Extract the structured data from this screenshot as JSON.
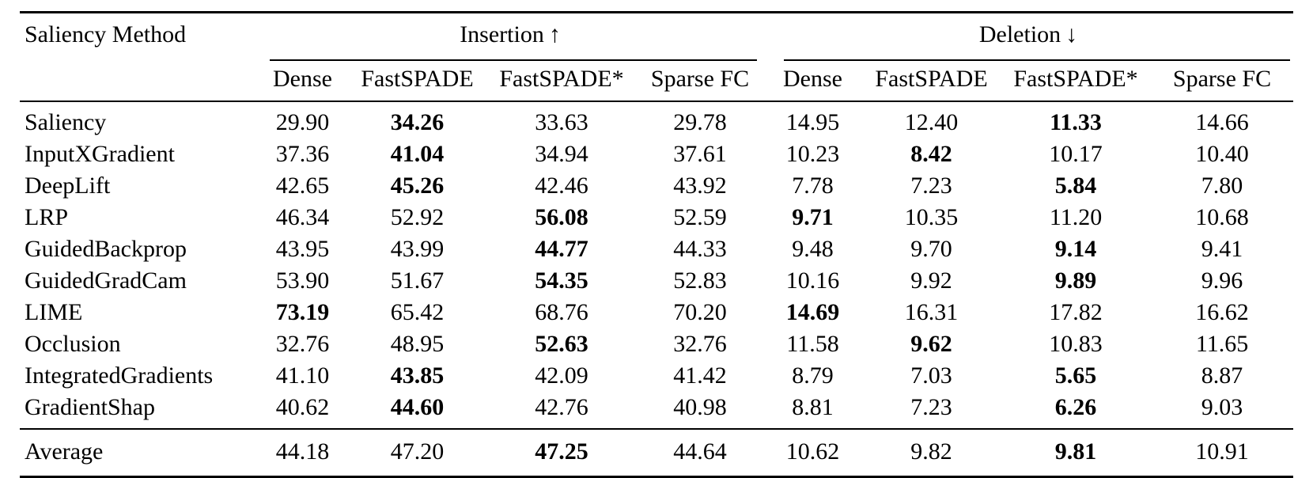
{
  "table": {
    "method_header": "Saliency Method",
    "groups": [
      {
        "label": "Insertion",
        "arrow": "↑"
      },
      {
        "label": "Deletion",
        "arrow": "↓"
      }
    ],
    "sub_headers": [
      "Dense",
      "FastSPADE",
      "FastSPADE*",
      "Sparse FC",
      "Dense",
      "FastSPADE",
      "FastSPADE*",
      "Sparse FC"
    ],
    "rows": [
      {
        "method": "Saliency",
        "values": [
          "29.90",
          "34.26",
          "33.63",
          "29.78",
          "14.95",
          "12.40",
          "11.33",
          "14.66"
        ],
        "bold": [
          1,
          6
        ]
      },
      {
        "method": "InputXGradient",
        "values": [
          "37.36",
          "41.04",
          "34.94",
          "37.61",
          "10.23",
          "8.42",
          "10.17",
          "10.40"
        ],
        "bold": [
          1,
          5
        ]
      },
      {
        "method": "DeepLift",
        "values": [
          "42.65",
          "45.26",
          "42.46",
          "43.92",
          "7.78",
          "7.23",
          "5.84",
          "7.80"
        ],
        "bold": [
          1,
          6
        ]
      },
      {
        "method": "LRP",
        "values": [
          "46.34",
          "52.92",
          "56.08",
          "52.59",
          "9.71",
          "10.35",
          "11.20",
          "10.68"
        ],
        "bold": [
          2,
          4
        ]
      },
      {
        "method": "GuidedBackprop",
        "values": [
          "43.95",
          "43.99",
          "44.77",
          "44.33",
          "9.48",
          "9.70",
          "9.14",
          "9.41"
        ],
        "bold": [
          2,
          6
        ]
      },
      {
        "method": "GuidedGradCam",
        "values": [
          "53.90",
          "51.67",
          "54.35",
          "52.83",
          "10.16",
          "9.92",
          "9.89",
          "9.96"
        ],
        "bold": [
          2,
          6
        ]
      },
      {
        "method": "LIME",
        "values": [
          "73.19",
          "65.42",
          "68.76",
          "70.20",
          "14.69",
          "16.31",
          "17.82",
          "16.62"
        ],
        "bold": [
          0,
          4
        ]
      },
      {
        "method": "Occlusion",
        "values": [
          "32.76",
          "48.95",
          "52.63",
          "32.76",
          "11.58",
          "9.62",
          "10.83",
          "11.65"
        ],
        "bold": [
          2,
          5
        ]
      },
      {
        "method": "IntegratedGradients",
        "values": [
          "41.10",
          "43.85",
          "42.09",
          "41.42",
          "8.79",
          "7.03",
          "5.65",
          "8.87"
        ],
        "bold": [
          1,
          6
        ]
      },
      {
        "method": "GradientShap",
        "values": [
          "40.62",
          "44.60",
          "42.76",
          "40.98",
          "8.81",
          "7.23",
          "6.26",
          "9.03"
        ],
        "bold": [
          1,
          6
        ]
      }
    ],
    "average": {
      "method": "Average",
      "values": [
        "44.18",
        "47.20",
        "47.25",
        "44.64",
        "10.62",
        "9.82",
        "9.81",
        "10.91"
      ],
      "bold": [
        2,
        6
      ]
    }
  }
}
